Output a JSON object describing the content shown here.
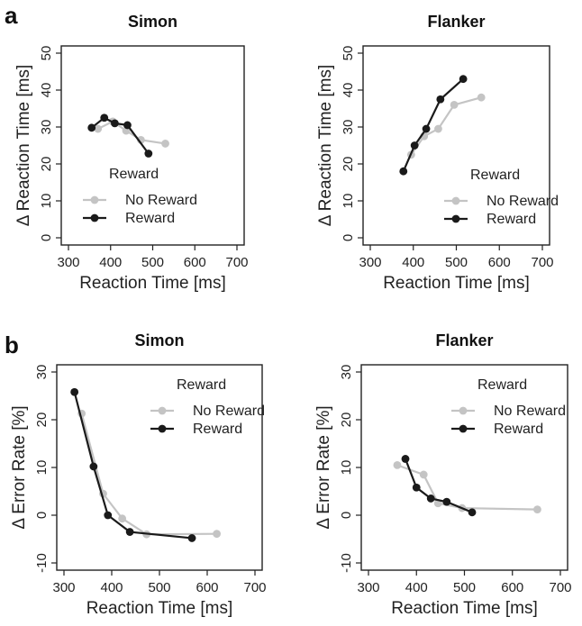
{
  "panel_labels": [
    "a",
    "b"
  ],
  "colors": {
    "no_reward": "#c4c4c4",
    "reward": "#1a1a1a",
    "axis": "#222222"
  },
  "chart_data": [
    {
      "type": "line",
      "panel": "a",
      "title": "Simon",
      "xlabel": "Reaction Time [ms]",
      "ylabel": "Δ Reaction Time [ms]",
      "xlim": [
        300,
        700
      ],
      "ylim": [
        0,
        50
      ],
      "xticks": [
        300,
        400,
        500,
        600,
        700
      ],
      "yticks": [
        0,
        10,
        20,
        30,
        40,
        50
      ],
      "legend": {
        "title": "Reward",
        "position": "middle-left"
      },
      "series": [
        {
          "name": "No Reward",
          "color": "#c4c4c4",
          "x": [
            370,
            405,
            437,
            472,
            530
          ],
          "y": [
            29.5,
            31.5,
            29.0,
            26.5,
            25.5
          ]
        },
        {
          "name": "Reward",
          "color": "#1a1a1a",
          "x": [
            355,
            385,
            410,
            440,
            490
          ],
          "y": [
            29.8,
            32.5,
            31.0,
            30.5,
            22.8
          ]
        }
      ]
    },
    {
      "type": "line",
      "panel": "a",
      "title": "Flanker",
      "xlabel": "Reaction Time [ms]",
      "ylabel": "Δ Reaction Time [ms]",
      "xlim": [
        300,
        700
      ],
      "ylim": [
        0,
        50
      ],
      "xticks": [
        300,
        400,
        500,
        600,
        700
      ],
      "yticks": [
        0,
        10,
        20,
        30,
        40,
        50
      ],
      "legend": {
        "title": "Reward",
        "position": "middle-right"
      },
      "series": [
        {
          "name": "No Reward",
          "color": "#c4c4c4",
          "x": [
            395,
            425,
            458,
            495,
            558
          ],
          "y": [
            22.5,
            27.5,
            29.5,
            36.0,
            38.0
          ]
        },
        {
          "name": "Reward",
          "color": "#1a1a1a",
          "x": [
            377,
            403,
            430,
            463,
            516
          ],
          "y": [
            18.0,
            25.0,
            29.5,
            37.5,
            43.0
          ]
        }
      ]
    },
    {
      "type": "line",
      "panel": "b",
      "title": "Simon",
      "xlabel": "Reaction Time [ms]",
      "ylabel": "Δ Error Rate [%]",
      "xlim": [
        300,
        700
      ],
      "ylim": [
        -10,
        30
      ],
      "xticks": [
        300,
        400,
        500,
        600,
        700
      ],
      "yticks": [
        -10,
        0,
        10,
        20,
        30
      ],
      "legend": {
        "title": "Reward",
        "position": "top-right"
      },
      "series": [
        {
          "name": "No Reward",
          "color": "#c4c4c4",
          "x": [
            337,
            382,
            422,
            473,
            620
          ],
          "y": [
            21.3,
            4.5,
            -0.7,
            -4.0,
            -3.9
          ]
        },
        {
          "name": "Reward",
          "color": "#1a1a1a",
          "x": [
            322,
            362,
            392,
            438,
            568
          ],
          "y": [
            25.8,
            10.2,
            0.0,
            -3.5,
            -4.8
          ]
        }
      ]
    },
    {
      "type": "line",
      "panel": "b",
      "title": "Flanker",
      "xlabel": "Reaction Time [ms]",
      "ylabel": "Δ Error Rate [%]",
      "xlim": [
        300,
        700
      ],
      "ylim": [
        -10,
        30
      ],
      "xticks": [
        300,
        400,
        500,
        600,
        700
      ],
      "yticks": [
        -10,
        0,
        10,
        20,
        30
      ],
      "legend": {
        "title": "Reward",
        "position": "top-right"
      },
      "series": [
        {
          "name": "No Reward",
          "color": "#c4c4c4",
          "x": [
            360,
            415,
            445,
            495,
            652
          ],
          "y": [
            10.5,
            8.5,
            2.5,
            1.5,
            1.2
          ]
        },
        {
          "name": "Reward",
          "color": "#1a1a1a",
          "x": [
            377,
            400,
            430,
            463,
            516
          ],
          "y": [
            11.8,
            5.8,
            3.5,
            2.8,
            0.6
          ]
        }
      ]
    }
  ]
}
